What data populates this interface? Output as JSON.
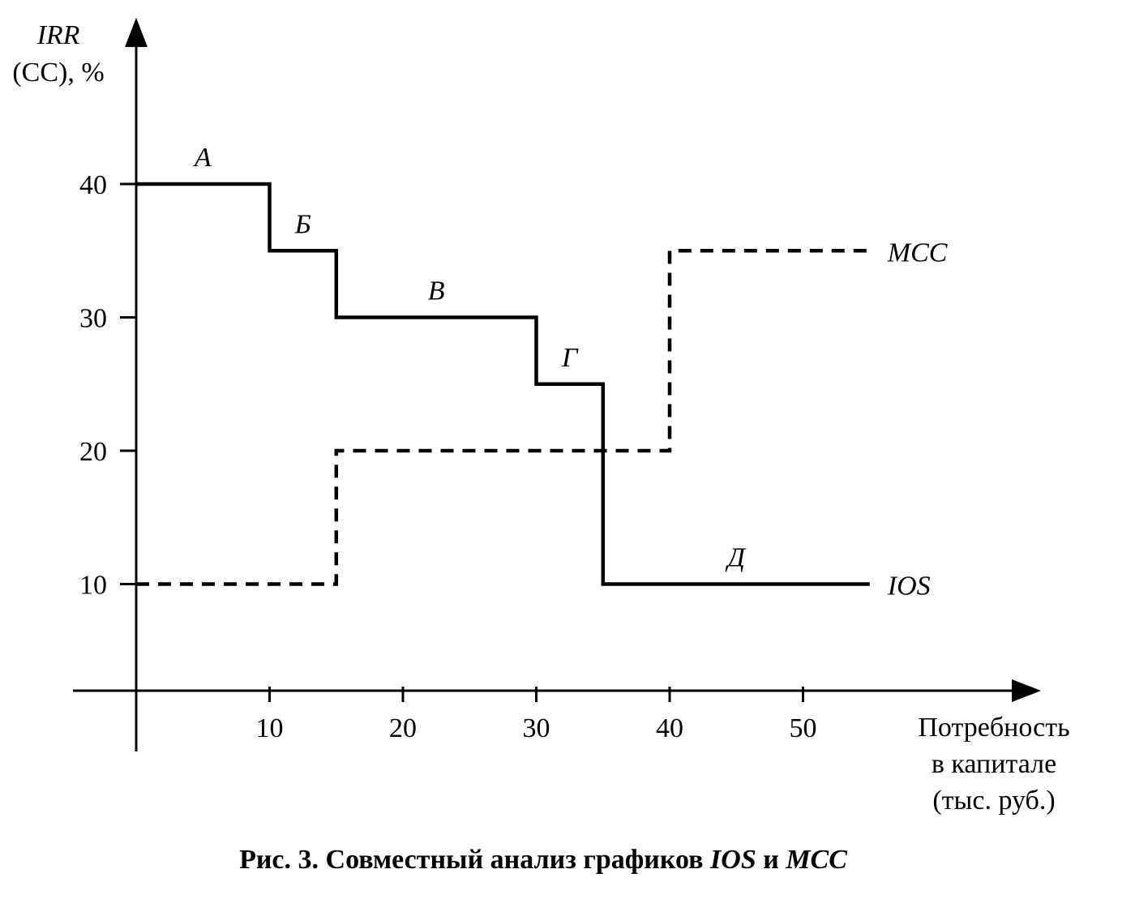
{
  "chart_data": {
    "type": "line",
    "ylabel": [
      "IRR",
      "(CC), %"
    ],
    "xlabel": [
      "Потребность",
      "в капитале",
      "(тыс. руб.)"
    ],
    "xlim": [
      0,
      67
    ],
    "ylim": [
      0,
      48
    ],
    "x_ticks": [
      10,
      20,
      30,
      40,
      50
    ],
    "y_ticks": [
      10,
      20,
      30,
      40
    ],
    "grid": false,
    "series": [
      {
        "name": "IOS",
        "style": "solid",
        "color": "#000000",
        "points": [
          [
            0,
            40
          ],
          [
            10,
            40
          ],
          [
            10,
            35
          ],
          [
            15,
            35
          ],
          [
            15,
            30
          ],
          [
            30,
            30
          ],
          [
            30,
            25
          ],
          [
            35,
            25
          ],
          [
            35,
            10
          ],
          [
            55,
            10
          ]
        ]
      },
      {
        "name": "MCC",
        "style": "dashed",
        "color": "#000000",
        "points": [
          [
            0,
            10
          ],
          [
            15,
            10
          ],
          [
            15,
            20
          ],
          [
            40,
            20
          ],
          [
            40,
            35
          ],
          [
            55,
            35
          ]
        ]
      }
    ],
    "segment_labels": [
      {
        "text": "А",
        "x": 5,
        "y": 40
      },
      {
        "text": "Б",
        "x": 12.5,
        "y": 35
      },
      {
        "text": "В",
        "x": 22.5,
        "y": 30
      },
      {
        "text": "Г",
        "x": 32.5,
        "y": 25
      },
      {
        "text": "Д",
        "x": 45,
        "y": 10
      }
    ]
  },
  "caption": {
    "prefix": "Рис. 3.",
    "text": " Совместный анализ графиков ",
    "ios": "IOS",
    "and": " и ",
    "mcc": "MCC"
  }
}
